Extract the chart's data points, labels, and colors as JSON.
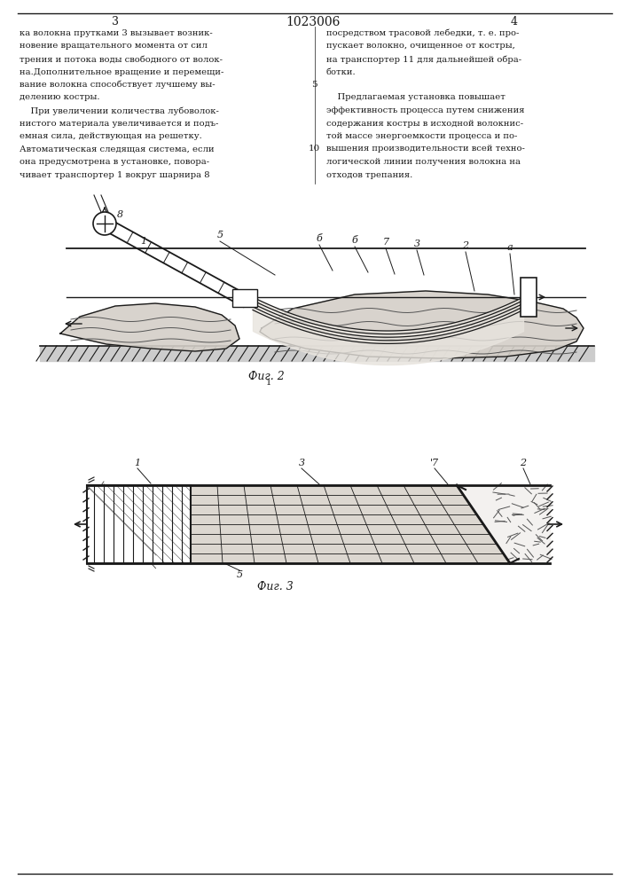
{
  "line_color": "#1a1a1a",
  "text_color": "#1a1a1a",
  "page_number_left": "3",
  "page_number_center": "1023006",
  "page_number_right": "4",
  "col1_text": [
    "ка волокна прутками 3 вызывает возник-",
    "новение вращательного момента от сил",
    "трения и потока воды свободного от волок-",
    "на.Дополнительное вращение и перемещи-",
    "вание волокна способствует лучшему вы-",
    "делению костры.",
    "    При увеличении количества лубоволок-",
    "нистого материала увеличивается и подъ-",
    "емная сила, действующая на решетку.",
    "Автоматическая следящая система, если",
    "она предусмотрена в установке, повора-",
    "чивает транспортер 1 вокруг шарнира 8"
  ],
  "col2_text": [
    "посредством трасовой лебедки, т. е. про-",
    "пускает волокно, очищенное от костры,",
    "на транспортер 11 для дальнейшей обра-",
    "ботки.",
    "",
    "    Предлагаемая установка повышает",
    "эффективность процесса путем снижения",
    "содержания костры в исходной волокнис-",
    "той массе энергоемкости процесса и по-",
    "вышения производительности всей техно-",
    "логической линии получения волокна на",
    "отходов трепания."
  ],
  "fig2_caption": "Фиг. 2",
  "fig3_caption": "Фиг. 3"
}
